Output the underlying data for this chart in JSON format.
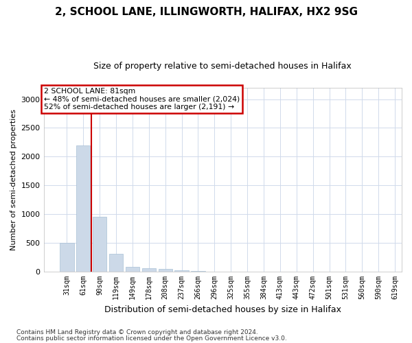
{
  "title": "2, SCHOOL LANE, ILLINGWORTH, HALIFAX, HX2 9SG",
  "subtitle": "Size of property relative to semi-detached houses in Halifax",
  "xlabel": "Distribution of semi-detached houses by size in Halifax",
  "ylabel": "Number of semi-detached properties",
  "footnote1": "Contains HM Land Registry data © Crown copyright and database right 2024.",
  "footnote2": "Contains public sector information licensed under the Open Government Licence v3.0.",
  "annotation_line1": "2 SCHOOL LANE: 81sqm",
  "annotation_line2": "← 48% of semi-detached houses are smaller (2,024)",
  "annotation_line3": "52% of semi-detached houses are larger (2,191) →",
  "bar_values": [
    500,
    2200,
    950,
    310,
    85,
    65,
    45,
    25,
    15,
    5,
    5,
    5,
    5,
    5,
    5,
    5,
    5,
    5,
    5,
    5
  ],
  "x_labels": [
    "31sqm",
    "61sqm",
    "90sqm",
    "119sqm",
    "149sqm",
    "178sqm",
    "208sqm",
    "237sqm",
    "266sqm",
    "296sqm",
    "325sqm",
    "355sqm",
    "384sqm",
    "413sqm",
    "443sqm",
    "472sqm",
    "501sqm",
    "531sqm",
    "560sqm",
    "590sqm",
    "619sqm"
  ],
  "bar_color": "#ccd9e8",
  "bar_edge_color": "#a8c0d6",
  "red_line_x": 1.5,
  "red_line_color": "#cc0000",
  "annotation_box_edge_color": "#cc0000",
  "grid_color": "#d0daeb",
  "background_color": "#ffffff",
  "ylim": [
    0,
    3200
  ],
  "yticks": [
    0,
    500,
    1000,
    1500,
    2000,
    2500,
    3000
  ],
  "title_fontsize": 11,
  "subtitle_fontsize": 9
}
